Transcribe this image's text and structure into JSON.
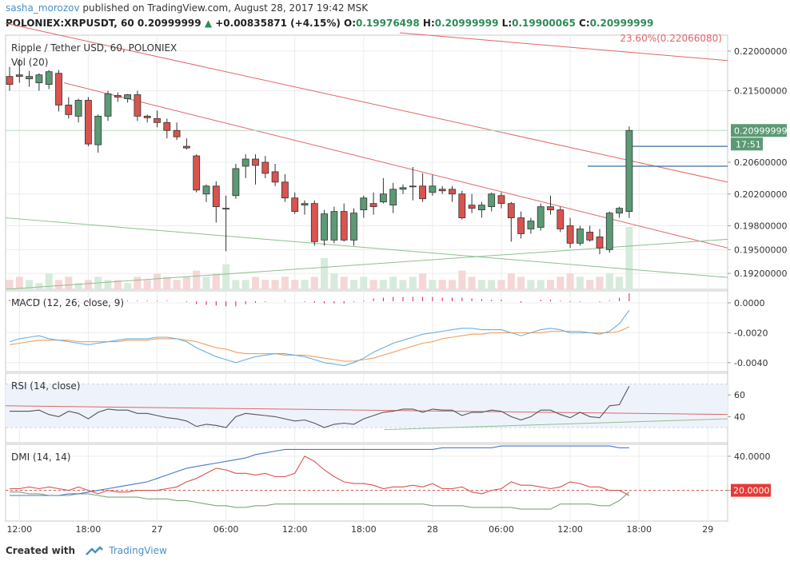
{
  "header": {
    "user": "sasha_morozov",
    "published": " published on TradingView.com, August 28, 2017 19:42 MSK",
    "symbol": "POLONIEX:XRPUSDT, 60",
    "last": "0.20999999",
    "change": "+0.00835871 (+4.15%)",
    "o_label": "O:",
    "o": "0.19976498",
    "h_label": "H:",
    "h": "0.20999999",
    "l_label": "L:",
    "l": "0.19900065",
    "c_label": "C:",
    "c": "0.20999999"
  },
  "footer": {
    "created": "Created with",
    "brand": "TradingView"
  },
  "colors": {
    "up": "#5b9a74",
    "down": "#d9534f",
    "trend": "#e06666",
    "green_line": "#8fbf8f",
    "macd": "#6ab0e0",
    "signal": "#f0a060"
  },
  "chart_data": [
    {
      "type": "candlestick",
      "title": "Ripple / Tether USD, 60, POLONIEX",
      "volume_label": "Vol (20)",
      "fib_label": "23.60%(0.22066080)",
      "ylim": [
        0.19,
        0.222
      ],
      "yticks": [
        "0.22000000",
        "0.21500000",
        "0.20600000",
        "0.20200000",
        "0.19800000",
        "0.19500000",
        "0.19200000"
      ],
      "ytick_values": [
        0.22,
        0.215,
        0.206,
        0.202,
        0.198,
        0.195,
        0.192
      ],
      "last_price_label": "0.20999999",
      "last_price": 0.21,
      "countdown": "17:51",
      "xticks": [
        "12:00",
        "18:00",
        "27",
        "06:00",
        "12:00",
        "18:00",
        "28",
        "06:00",
        "12:00",
        "18:00",
        "29"
      ],
      "ohlc": [
        [
          0.2168,
          0.218,
          0.215,
          0.2158
        ],
        [
          0.217,
          0.219,
          0.216,
          0.2168
        ],
        [
          0.2165,
          0.2175,
          0.2155,
          0.2168
        ],
        [
          0.216,
          0.2172,
          0.215,
          0.217
        ],
        [
          0.2158,
          0.2176,
          0.2152,
          0.2174
        ],
        [
          0.2172,
          0.2176,
          0.2124,
          0.2132
        ],
        [
          0.2132,
          0.2142,
          0.2115,
          0.212
        ],
        [
          0.2118,
          0.214,
          0.211,
          0.2138
        ],
        [
          0.2138,
          0.2142,
          0.208,
          0.2083
        ],
        [
          0.2082,
          0.212,
          0.2072,
          0.2118
        ],
        [
          0.2118,
          0.215,
          0.2112,
          0.2146
        ],
        [
          0.2144,
          0.2148,
          0.2136,
          0.2142
        ],
        [
          0.214,
          0.2146,
          0.2135,
          0.2145
        ],
        [
          0.2145,
          0.215,
          0.2112,
          0.2118
        ],
        [
          0.2118,
          0.212,
          0.211,
          0.2116
        ],
        [
          0.2115,
          0.2125,
          0.2104,
          0.211
        ],
        [
          0.211,
          0.2115,
          0.209,
          0.21
        ],
        [
          0.21,
          0.211,
          0.2088,
          0.2092
        ],
        [
          0.208,
          0.209,
          0.2076,
          0.2078
        ],
        [
          0.2068,
          0.207,
          0.2022,
          0.2025
        ],
        [
          0.202,
          0.2032,
          0.201,
          0.203
        ],
        [
          0.203,
          0.2036,
          0.1984,
          0.2004
        ],
        [
          0.2002,
          0.2018,
          0.1948,
          0.2002
        ],
        [
          0.2018,
          0.2058,
          0.2014,
          0.2052
        ],
        [
          0.2055,
          0.207,
          0.204,
          0.2064
        ],
        [
          0.2064,
          0.207,
          0.2032,
          0.2056
        ],
        [
          0.206,
          0.2068,
          0.204,
          0.2046
        ],
        [
          0.2048,
          0.2058,
          0.203,
          0.2035
        ],
        [
          0.2035,
          0.2045,
          0.201,
          0.2015
        ],
        [
          0.2015,
          0.2022,
          0.1995,
          0.1998
        ],
        [
          0.2006,
          0.2012,
          0.1994,
          0.2008
        ],
        [
          0.2008,
          0.2012,
          0.1955,
          0.196
        ],
        [
          0.1962,
          0.2,
          0.1955,
          0.1995
        ],
        [
          0.1962,
          0.2004,
          0.1958,
          0.1998
        ],
        [
          0.1998,
          0.2008,
          0.196,
          0.1962
        ],
        [
          0.1962,
          0.2002,
          0.1955,
          0.1996
        ],
        [
          0.2,
          0.2018,
          0.199,
          0.2015
        ],
        [
          0.2008,
          0.2022,
          0.1994,
          0.2004
        ],
        [
          0.201,
          0.204,
          0.2008,
          0.202
        ],
        [
          0.2006,
          0.2034,
          0.1996,
          0.2026
        ],
        [
          0.2026,
          0.2032,
          0.202,
          0.2028
        ],
        [
          0.203,
          0.2054,
          0.2012,
          0.203
        ],
        [
          0.203,
          0.2046,
          0.201,
          0.2014
        ],
        [
          0.2022,
          0.2044,
          0.2018,
          0.203
        ],
        [
          0.2026,
          0.203,
          0.202,
          0.2024
        ],
        [
          0.2026,
          0.203,
          0.201,
          0.202
        ],
        [
          0.202,
          0.2024,
          0.1988,
          0.199
        ],
        [
          0.2006,
          0.202,
          0.1996,
          0.2002
        ],
        [
          0.2,
          0.201,
          0.199,
          0.2006
        ],
        [
          0.2004,
          0.2022,
          0.1998,
          0.202
        ],
        [
          0.2018,
          0.2022,
          0.2002,
          0.2008
        ],
        [
          0.2008,
          0.201,
          0.196,
          0.199
        ],
        [
          0.199,
          0.1998,
          0.1964,
          0.197
        ],
        [
          0.1976,
          0.199,
          0.197,
          0.1986
        ],
        [
          0.1978,
          0.2008,
          0.1974,
          0.2004
        ],
        [
          0.2004,
          0.2018,
          0.1994,
          0.2
        ],
        [
          0.2,
          0.2004,
          0.1972,
          0.1976
        ],
        [
          0.198,
          0.199,
          0.1952,
          0.1958
        ],
        [
          0.1958,
          0.198,
          0.1955,
          0.1976
        ],
        [
          0.1972,
          0.198,
          0.196,
          0.1962
        ],
        [
          0.1966,
          0.1976,
          0.1944,
          0.1952
        ],
        [
          0.195,
          0.1998,
          0.1946,
          0.1996
        ],
        [
          0.1996,
          0.2004,
          0.199,
          0.2002
        ],
        [
          0.1998,
          0.2105,
          0.199,
          0.21
        ]
      ],
      "volume": [
        3,
        4,
        3,
        2,
        5,
        3,
        4,
        2,
        3,
        4,
        3,
        3,
        2,
        4,
        3,
        5,
        4,
        3,
        4,
        6,
        4,
        5,
        8,
        3,
        3,
        4,
        3,
        3,
        4,
        3,
        3,
        4,
        10,
        5,
        4,
        3,
        4,
        3,
        3,
        4,
        3,
        4,
        5,
        3,
        3,
        3,
        6,
        4,
        3,
        3,
        3,
        5,
        4,
        3,
        3,
        3,
        4,
        5,
        4,
        3,
        4,
        5,
        4,
        20
      ]
    },
    {
      "type": "line",
      "title": "MACD (12, 26, close, 9)",
      "yticks": [
        "0.0000",
        "-0.0020",
        "-0.0040"
      ],
      "ytick_values": [
        0,
        -0.002,
        -0.004
      ],
      "ylim": [
        -0.0046,
        0.0008
      ],
      "macd": [
        -0.0026,
        -0.0024,
        -0.0023,
        -0.0022,
        -0.0024,
        -0.0025,
        -0.0026,
        -0.0027,
        -0.0028,
        -0.0027,
        -0.0026,
        -0.0025,
        -0.0024,
        -0.0024,
        -0.0024,
        -0.0023,
        -0.0023,
        -0.0024,
        -0.0026,
        -0.003,
        -0.0033,
        -0.0036,
        -0.0038,
        -0.004,
        -0.0038,
        -0.0036,
        -0.0035,
        -0.0034,
        -0.0034,
        -0.0035,
        -0.0036,
        -0.0038,
        -0.004,
        -0.0041,
        -0.0042,
        -0.004,
        -0.0037,
        -0.0033,
        -0.003,
        -0.0027,
        -0.0025,
        -0.0023,
        -0.0021,
        -0.002,
        -0.0019,
        -0.0018,
        -0.0017,
        -0.0017,
        -0.0018,
        -0.0018,
        -0.0018,
        -0.002,
        -0.0022,
        -0.002,
        -0.0018,
        -0.0017,
        -0.0018,
        -0.002,
        -0.002,
        -0.002,
        -0.0021,
        -0.0019,
        -0.0014,
        -0.0005
      ],
      "signal": [
        -0.0028,
        -0.0027,
        -0.0026,
        -0.0025,
        -0.0025,
        -0.0025,
        -0.0025,
        -0.0026,
        -0.0026,
        -0.0026,
        -0.0026,
        -0.0026,
        -0.0025,
        -0.0025,
        -0.0025,
        -0.0024,
        -0.0024,
        -0.0024,
        -0.0025,
        -0.0026,
        -0.0028,
        -0.003,
        -0.0031,
        -0.0033,
        -0.0034,
        -0.0034,
        -0.0034,
        -0.0034,
        -0.0035,
        -0.0035,
        -0.0035,
        -0.0036,
        -0.0037,
        -0.0038,
        -0.0039,
        -0.0039,
        -0.0038,
        -0.0037,
        -0.0035,
        -0.0033,
        -0.0031,
        -0.0029,
        -0.0027,
        -0.0026,
        -0.0024,
        -0.0023,
        -0.0022,
        -0.0021,
        -0.0021,
        -0.002,
        -0.002,
        -0.002,
        -0.002,
        -0.002,
        -0.002,
        -0.0019,
        -0.0019,
        -0.0019,
        -0.0019,
        -0.002,
        -0.002,
        -0.002,
        -0.0019,
        -0.0016
      ]
    },
    {
      "type": "line",
      "title": "RSI (14, close)",
      "yticks": [
        "60",
        "40"
      ],
      "ytick_values": [
        60,
        40
      ],
      "ylim": [
        16,
        80
      ],
      "band": [
        30,
        70
      ],
      "values": [
        45,
        45,
        45,
        46,
        42,
        40,
        45,
        43,
        38,
        44,
        47,
        46,
        46,
        43,
        43,
        41,
        39,
        38,
        36,
        31,
        33,
        32,
        30,
        40,
        43,
        42,
        41,
        40,
        38,
        36,
        37,
        34,
        30,
        33,
        34,
        33,
        38,
        41,
        44,
        45,
        47,
        47,
        44,
        47,
        46,
        46,
        41,
        44,
        44,
        46,
        45,
        40,
        37,
        40,
        46,
        46,
        42,
        39,
        44,
        40,
        39,
        50,
        51,
        68
      ]
    },
    {
      "type": "line",
      "title": "DMI (14, 14)",
      "yticks": [
        "40.0000",
        "20.0000"
      ],
      "ytick_values": [
        40,
        20
      ],
      "ylim": [
        2,
        47
      ],
      "plus_di": [
        21,
        21,
        22,
        21,
        22,
        21,
        20,
        22,
        20,
        18,
        20,
        19,
        19,
        20,
        20,
        20,
        21,
        22,
        25,
        27,
        30,
        33,
        32,
        30,
        30,
        29,
        30,
        28,
        28,
        30,
        40,
        37,
        32,
        28,
        25,
        24,
        24,
        23,
        21,
        22,
        22,
        23,
        22,
        24,
        21,
        21,
        22,
        19,
        18,
        20,
        21,
        25,
        23,
        23,
        22,
        21,
        22,
        25,
        24,
        22,
        22,
        20,
        20,
        17
      ],
      "minus_di": [
        19,
        19,
        18,
        18,
        17,
        17,
        17,
        18,
        18,
        17,
        16,
        16,
        16,
        16,
        15,
        15,
        15,
        14,
        14,
        13,
        12,
        11,
        11,
        10,
        10,
        11,
        11,
        12,
        12,
        12,
        12,
        12,
        12,
        12,
        12,
        12,
        12,
        12,
        12,
        12,
        12,
        12,
        12,
        11,
        11,
        11,
        11,
        10,
        10,
        10,
        10,
        10,
        9,
        9,
        9,
        9,
        12,
        12,
        12,
        12,
        11,
        11,
        14,
        19
      ],
      "adx": [
        17,
        17,
        17,
        17,
        17,
        17,
        18,
        18,
        19,
        20,
        21,
        22,
        23,
        24,
        25,
        27,
        29,
        31,
        33,
        34,
        35,
        36,
        37,
        38,
        39,
        41,
        42,
        43,
        44,
        44,
        44,
        44,
        44,
        44,
        44,
        44,
        44,
        44,
        44,
        44,
        44,
        44,
        44,
        44,
        45,
        45,
        45,
        45,
        45,
        45,
        46,
        46,
        46,
        46,
        46,
        46,
        46,
        46,
        46,
        46,
        46,
        46,
        45,
        45
      ],
      "last_label": "20.0000",
      "ref_level": 20
    }
  ]
}
